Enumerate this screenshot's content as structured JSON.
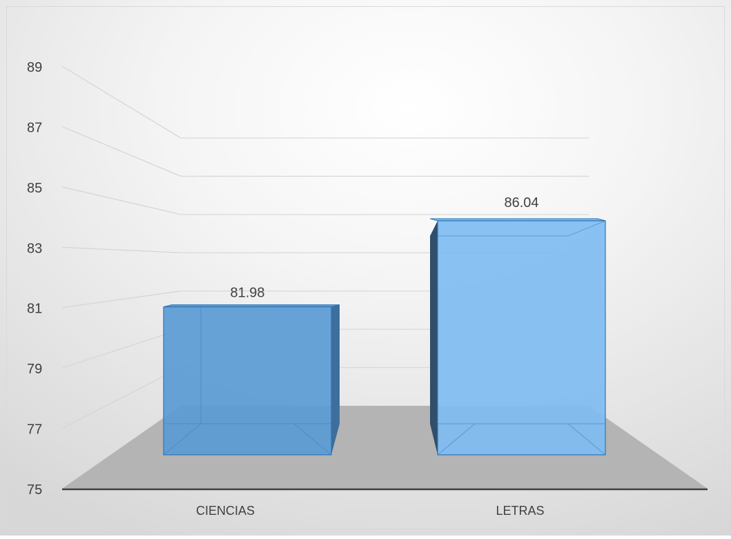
{
  "chart_data": {
    "type": "bar",
    "title": "",
    "xlabel": "",
    "ylabel": "",
    "categories": [
      "CIENCIAS",
      "LETRAS"
    ],
    "values": [
      81.98,
      86.04
    ],
    "data_labels": [
      "81.98",
      "86.04"
    ],
    "ylim": [
      75,
      89
    ],
    "yticks": [
      75,
      77,
      79,
      81,
      83,
      85,
      87,
      89
    ],
    "ytick_labels": [
      "75",
      "77",
      "79",
      "81",
      "83",
      "85",
      "87",
      "89"
    ],
    "grid": true,
    "legend": "none",
    "style": "3d-column",
    "colors": {
      "bar_ciencias": "#5b9bd5",
      "bar_letras": "#7fbcf2",
      "floor": "#b4b4b4",
      "axis": "#404040",
      "text": "#404040"
    }
  }
}
